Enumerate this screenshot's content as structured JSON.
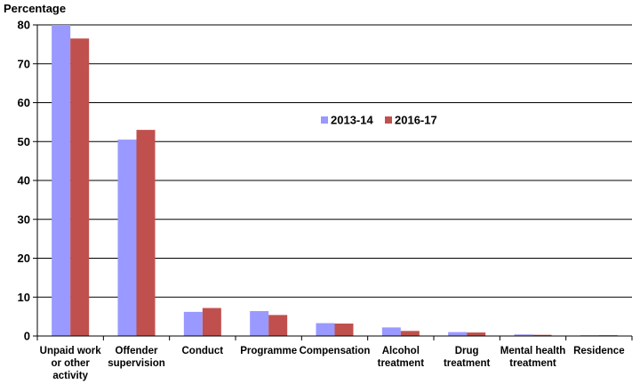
{
  "chart_data": {
    "type": "bar",
    "title": "",
    "xlabel": "",
    "ylabel": "Percentage",
    "ylim": [
      0,
      80
    ],
    "yticks": [
      0,
      10,
      20,
      30,
      40,
      50,
      60,
      70,
      80
    ],
    "grid": true,
    "legend_position": "center-right",
    "categories": [
      [
        "Unpaid work",
        "or other",
        "activity"
      ],
      [
        "Offender",
        "supervision"
      ],
      [
        "Conduct"
      ],
      [
        "Programme"
      ],
      [
        "Compensation"
      ],
      [
        "Alcohol",
        "treatment"
      ],
      [
        "Drug",
        "treatment"
      ],
      [
        "Mental health",
        "treatment"
      ],
      [
        "Residence"
      ]
    ],
    "series": [
      {
        "name": "2013-14",
        "color": "#9999ff",
        "values": [
          80,
          50.5,
          6.2,
          6.4,
          3.3,
          2.2,
          1.0,
          0.4,
          0.2
        ]
      },
      {
        "name": "2016-17",
        "color": "#c0504d",
        "values": [
          76.5,
          53,
          7.2,
          5.4,
          3.2,
          1.3,
          0.9,
          0.3,
          0.2
        ]
      }
    ]
  }
}
